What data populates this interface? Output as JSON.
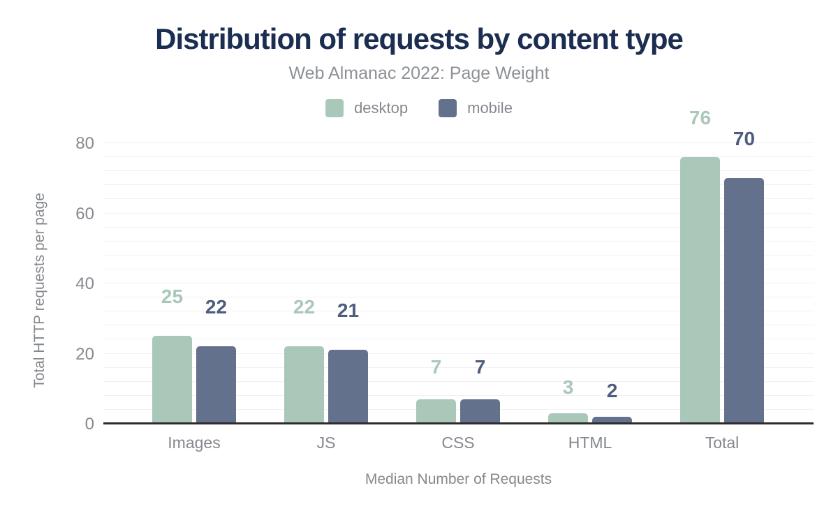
{
  "header": {
    "title": "Distribution of requests by content type",
    "subtitle": "Web Almanac 2022: Page Weight"
  },
  "legend": {
    "items": [
      {
        "label": "desktop",
        "color": "#a9c8b9"
      },
      {
        "label": "mobile",
        "color": "#63718d"
      }
    ]
  },
  "chart_data": {
    "type": "bar",
    "title": "Distribution of requests by content type",
    "subtitle": "Web Almanac 2022: Page Weight",
    "categories": [
      "Images",
      "JS",
      "CSS",
      "HTML",
      "Total"
    ],
    "series": [
      {
        "name": "desktop",
        "color": "#a9c8b9",
        "label_color": "#a9c8b9",
        "values": [
          25,
          22,
          7,
          3,
          76
        ]
      },
      {
        "name": "mobile",
        "color": "#63718d",
        "label_color": "#4e5d7d",
        "values": [
          22,
          21,
          7,
          2,
          70
        ]
      }
    ],
    "xlabel": "Median Number of Requests",
    "ylabel": "Total HTTP requests per page",
    "yticks": [
      0,
      20,
      40,
      60,
      80
    ],
    "ylim": [
      0,
      82
    ],
    "grid_step": 4,
    "grid": true,
    "legend_position": "top",
    "data_labels": true
  },
  "colors": {
    "title": "#1b2d50",
    "subtitle": "#8d9196",
    "axis_text": "#85898e",
    "axis_line": "#2d2d2d",
    "gridline": "#f1f1f1",
    "background": "#ffffff"
  }
}
